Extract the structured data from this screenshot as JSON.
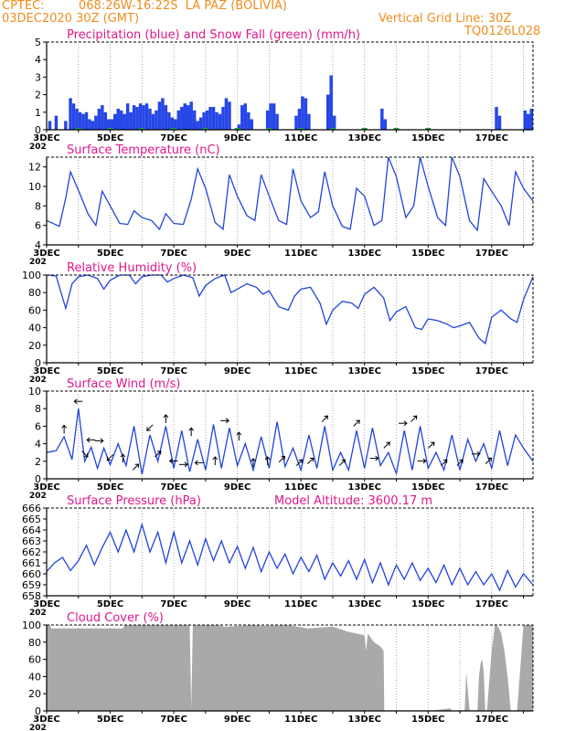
{
  "header": {
    "source": "CPTEC:",
    "location": "068:26W-16:22S  LA PAZ (BOLIVIA)",
    "run": "03DEC2020 30Z (GMT)",
    "grid_note": "Vertical Grid Line: 30Z",
    "code": "TQ0126L028"
  },
  "colors": {
    "header": "#f08c1e",
    "title": "#e0188c",
    "rain": "#2646e6",
    "snow": "#1aa64a",
    "line": "#2244dd",
    "cloud": "#a9a9a9",
    "wind_arrow": "#000000"
  },
  "x_ticks": [
    "3DEC",
    "5DEC",
    "7DEC",
    "9DEC",
    "11DEC",
    "13DEC",
    "15DEC",
    "17DEC"
  ],
  "year_stub": "202",
  "chart_data": [
    {
      "type": "bar",
      "title": "Precipitation (blue) and Snow Fall (green) (mm/h)",
      "ylim": [
        0,
        5
      ],
      "yticks": [
        "0",
        "1",
        "2",
        "3",
        "4",
        "5"
      ],
      "x_range_days": [
        0,
        15.3
      ],
      "series": [
        {
          "name": "Precipitation",
          "values": [
            [
              0.1,
              0.5
            ],
            [
              0.3,
              0.8
            ],
            [
              0.6,
              0.5
            ],
            [
              0.75,
              1.8
            ],
            [
              0.85,
              1.5
            ],
            [
              0.95,
              1.2
            ],
            [
              1.05,
              1.0
            ],
            [
              1.15,
              0.9
            ],
            [
              1.25,
              1.0
            ],
            [
              1.35,
              0.6
            ],
            [
              1.45,
              0.5
            ],
            [
              1.55,
              0.8
            ],
            [
              1.65,
              1.2
            ],
            [
              1.75,
              1.4
            ],
            [
              1.85,
              1.0
            ],
            [
              1.95,
              0.6
            ],
            [
              2.05,
              0.6
            ],
            [
              2.15,
              0.9
            ],
            [
              2.25,
              1.2
            ],
            [
              2.35,
              1.1
            ],
            [
              2.45,
              0.9
            ],
            [
              2.55,
              1.5
            ],
            [
              2.65,
              1.0
            ],
            [
              2.75,
              1.4
            ],
            [
              2.85,
              1.3
            ],
            [
              2.95,
              1.5
            ],
            [
              3.05,
              1.4
            ],
            [
              3.15,
              1.5
            ],
            [
              3.25,
              1.2
            ],
            [
              3.35,
              0.9
            ],
            [
              3.45,
              1.1
            ],
            [
              3.55,
              1.6
            ],
            [
              3.65,
              1.8
            ],
            [
              3.75,
              1.4
            ],
            [
              3.85,
              1.0
            ],
            [
              3.95,
              0.7
            ],
            [
              4.05,
              0.6
            ],
            [
              4.15,
              1.1
            ],
            [
              4.25,
              1.3
            ],
            [
              4.35,
              1.5
            ],
            [
              4.45,
              1.4
            ],
            [
              4.55,
              1.6
            ],
            [
              4.65,
              1.1
            ],
            [
              4.75,
              0.5
            ],
            [
              4.85,
              0.7
            ],
            [
              4.95,
              1.0
            ],
            [
              5.05,
              1.1
            ],
            [
              5.15,
              1.3
            ],
            [
              5.25,
              1.3
            ],
            [
              5.35,
              1.0
            ],
            [
              5.45,
              0.9
            ],
            [
              5.55,
              1.3
            ],
            [
              5.65,
              1.8
            ],
            [
              5.75,
              1.6
            ],
            [
              6.05,
              0.3
            ],
            [
              6.15,
              1.4
            ],
            [
              6.25,
              1.5
            ],
            [
              6.35,
              1.0
            ],
            [
              6.45,
              0.6
            ],
            [
              6.95,
              1.1
            ],
            [
              7.05,
              1.5
            ],
            [
              7.15,
              1.5
            ],
            [
              7.25,
              0.9
            ],
            [
              7.85,
              0.8
            ],
            [
              7.95,
              1.2
            ],
            [
              8.05,
              1.9
            ],
            [
              8.15,
              1.8
            ],
            [
              8.25,
              0.9
            ],
            [
              8.85,
              2.0
            ],
            [
              8.95,
              3.1
            ],
            [
              9.05,
              0.8
            ],
            [
              10.55,
              1.2
            ],
            [
              10.65,
              0.6
            ],
            [
              14.15,
              1.3
            ],
            [
              14.25,
              0.8
            ],
            [
              15.05,
              1.1
            ],
            [
              15.15,
              0.9
            ],
            [
              15.25,
              1.2
            ]
          ]
        },
        {
          "name": "Snow Fall",
          "values": [
            [
              1.0,
              0.05
            ],
            [
              2.0,
              0.05
            ],
            [
              3.0,
              0.05
            ],
            [
              4.0,
              0.05
            ],
            [
              5.0,
              0.05
            ],
            [
              6.0,
              0.05
            ],
            [
              7.0,
              0.05
            ],
            [
              8.0,
              0.05
            ],
            [
              9.0,
              0.05
            ],
            [
              10.0,
              0.05
            ],
            [
              11.0,
              0.05
            ],
            [
              12.0,
              0.05
            ]
          ]
        }
      ]
    },
    {
      "type": "line",
      "title": "Surface Temperature (nC)",
      "ylim": [
        4,
        13
      ],
      "yticks": [
        "4",
        "6",
        "8",
        "10",
        "12"
      ],
      "x": [
        0,
        0.4,
        0.6,
        0.75,
        1.0,
        1.3,
        1.55,
        1.75,
        2.0,
        2.3,
        2.55,
        2.75,
        3.0,
        3.3,
        3.55,
        3.75,
        4.0,
        4.3,
        4.55,
        4.75,
        5.0,
        5.3,
        5.55,
        5.75,
        6.0,
        6.3,
        6.55,
        6.75,
        7.0,
        7.3,
        7.55,
        7.75,
        8.0,
        8.3,
        8.55,
        8.75,
        9.0,
        9.3,
        9.55,
        9.75,
        10.0,
        10.3,
        10.55,
        10.75,
        11.0,
        11.3,
        11.55,
        11.75,
        12.0,
        12.3,
        12.55,
        12.75,
        13.0,
        13.3,
        13.55,
        13.75,
        14.0,
        14.3,
        14.55,
        14.75,
        15.0,
        15.3
      ],
      "y": [
        6.5,
        5.9,
        8.8,
        11.5,
        9.6,
        7.2,
        6.0,
        9.5,
        8.0,
        6.2,
        6.1,
        7.5,
        6.8,
        6.5,
        5.6,
        7.2,
        6.2,
        6.1,
        8.7,
        11.8,
        9.8,
        6.3,
        5.6,
        11.2,
        9.0,
        7.0,
        6.5,
        11.2,
        9.0,
        6.5,
        6.1,
        11.8,
        8.5,
        6.8,
        7.4,
        11.5,
        8.0,
        5.9,
        5.6,
        9.8,
        9.0,
        6.0,
        6.5,
        13.0,
        11.0,
        6.8,
        8.0,
        13.0,
        10.0,
        6.8,
        6.0,
        13.0,
        11.0,
        6.5,
        5.5,
        10.8,
        9.5,
        8.0,
        6.0,
        11.5,
        9.8,
        8.5
      ]
    },
    {
      "type": "line",
      "title": "Relative Humidity (%)",
      "ylim": [
        0,
        100
      ],
      "yticks": [
        "0",
        "20",
        "40",
        "60",
        "80",
        "100"
      ],
      "x": [
        0,
        0.3,
        0.6,
        0.8,
        1.0,
        1.3,
        1.6,
        1.8,
        2.0,
        2.3,
        2.6,
        2.8,
        3.0,
        3.3,
        3.6,
        3.8,
        4.0,
        4.3,
        4.6,
        4.8,
        5.0,
        5.3,
        5.6,
        5.8,
        6.0,
        6.3,
        6.6,
        6.8,
        7.0,
        7.3,
        7.6,
        7.8,
        8.0,
        8.3,
        8.6,
        8.8,
        9.0,
        9.3,
        9.6,
        9.8,
        10.0,
        10.3,
        10.6,
        10.8,
        11.0,
        11.3,
        11.6,
        11.8,
        12.0,
        12.3,
        12.6,
        12.8,
        13.0,
        13.3,
        13.6,
        13.8,
        14.0,
        14.3,
        14.6,
        14.8,
        15.0,
        15.3
      ],
      "y": [
        100,
        99,
        62,
        90,
        98,
        100,
        96,
        84,
        94,
        100,
        100,
        90,
        98,
        100,
        100,
        92,
        96,
        100,
        97,
        76,
        88,
        96,
        100,
        80,
        84,
        90,
        86,
        78,
        82,
        64,
        60,
        76,
        84,
        86,
        68,
        44,
        60,
        70,
        68,
        62,
        78,
        86,
        74,
        48,
        58,
        64,
        40,
        38,
        50,
        48,
        44,
        40,
        42,
        46,
        28,
        22,
        52,
        60,
        50,
        46,
        72,
        98
      ]
    },
    {
      "type": "line",
      "title": "Surface Wind (m/s)",
      "ylim": [
        0,
        10
      ],
      "yticks": [
        "0",
        "2",
        "4",
        "6",
        "8",
        "10"
      ],
      "x": [
        0,
        0.3,
        0.55,
        0.8,
        1.0,
        1.2,
        1.4,
        1.6,
        1.8,
        2.0,
        2.25,
        2.5,
        2.75,
        3.0,
        3.25,
        3.5,
        3.75,
        4.0,
        4.25,
        4.5,
        4.75,
        5.0,
        5.25,
        5.5,
        5.75,
        6.0,
        6.25,
        6.5,
        6.75,
        7.0,
        7.25,
        7.5,
        7.75,
        8.0,
        8.25,
        8.5,
        8.75,
        9.0,
        9.25,
        9.5,
        9.75,
        10.0,
        10.25,
        10.5,
        10.75,
        11.0,
        11.25,
        11.5,
        11.75,
        12.0,
        12.25,
        12.5,
        12.75,
        13.0,
        13.25,
        13.5,
        13.75,
        14.0,
        14.25,
        14.5,
        14.75,
        15.0,
        15.3
      ],
      "y": [
        3.0,
        3.2,
        4.8,
        2.2,
        8.0,
        2.0,
        3.6,
        1.2,
        3.5,
        1.6,
        4.0,
        1.5,
        6.0,
        0.5,
        5.0,
        2.0,
        6.0,
        1.2,
        5.5,
        0.8,
        4.5,
        1.0,
        6.2,
        1.2,
        5.8,
        1.5,
        4.0,
        1.0,
        4.8,
        1.2,
        6.5,
        1.4,
        3.5,
        1.0,
        5.0,
        1.2,
        6.0,
        1.0,
        3.0,
        1.0,
        5.5,
        1.2,
        5.8,
        1.5,
        3.0,
        0.6,
        5.5,
        1.0,
        6.0,
        1.2,
        3.0,
        1.0,
        5.0,
        1.0,
        4.5,
        2.0,
        4.0,
        1.2,
        5.5,
        1.5,
        5.0,
        3.5,
        2.0
      ],
      "arrows": [
        [
          0.55,
          0,
          1
        ],
        [
          1.0,
          -1,
          0
        ],
        [
          1.2,
          1,
          -1
        ],
        [
          1.4,
          -1,
          0
        ],
        [
          1.65,
          1,
          0
        ],
        [
          2.0,
          -1,
          -1
        ],
        [
          2.4,
          0,
          1
        ],
        [
          2.8,
          1,
          1
        ],
        [
          3.25,
          -1,
          -1
        ],
        [
          3.5,
          1,
          1
        ],
        [
          3.75,
          0,
          1
        ],
        [
          4.0,
          -1,
          0
        ],
        [
          4.3,
          1,
          0
        ],
        [
          4.55,
          0,
          1
        ],
        [
          4.8,
          -1,
          0
        ],
        [
          5.3,
          0,
          1
        ],
        [
          5.6,
          1,
          0
        ],
        [
          6.05,
          0,
          1
        ],
        [
          6.5,
          0,
          1
        ],
        [
          6.95,
          0,
          1
        ],
        [
          7.4,
          1,
          1
        ],
        [
          7.95,
          1,
          1
        ],
        [
          8.3,
          1,
          1
        ],
        [
          8.75,
          1,
          1
        ],
        [
          9.3,
          1,
          1
        ],
        [
          9.75,
          1,
          1
        ],
        [
          10.3,
          1,
          0
        ],
        [
          10.7,
          1,
          1
        ],
        [
          11.2,
          1,
          0
        ],
        [
          11.55,
          1,
          1
        ],
        [
          11.8,
          1,
          0
        ],
        [
          12.1,
          1,
          1
        ],
        [
          12.5,
          1,
          1
        ],
        [
          13.0,
          1,
          1
        ],
        [
          13.5,
          1,
          0
        ],
        [
          13.9,
          1,
          1
        ]
      ]
    },
    {
      "type": "line",
      "title": "Surface Pressure (hPa)",
      "annotation": "Model Altitude: 3600.17 m",
      "ylim": [
        658,
        666
      ],
      "yticks": [
        "658",
        "659",
        "660",
        "661",
        "662",
        "663",
        "664",
        "665",
        "666"
      ],
      "x": [
        0,
        0.25,
        0.5,
        0.75,
        1.0,
        1.25,
        1.5,
        1.75,
        2.0,
        2.25,
        2.5,
        2.75,
        3.0,
        3.25,
        3.5,
        3.75,
        4.0,
        4.25,
        4.5,
        4.75,
        5.0,
        5.25,
        5.5,
        5.75,
        6.0,
        6.25,
        6.5,
        6.75,
        7.0,
        7.25,
        7.5,
        7.75,
        8.0,
        8.25,
        8.5,
        8.75,
        9.0,
        9.25,
        9.5,
        9.75,
        10.0,
        10.25,
        10.5,
        10.75,
        11.0,
        11.25,
        11.5,
        11.75,
        12.0,
        12.25,
        12.5,
        12.75,
        13.0,
        13.25,
        13.5,
        13.75,
        14.0,
        14.25,
        14.5,
        14.75,
        15.0,
        15.3
      ],
      "y": [
        660.2,
        661.0,
        661.5,
        660.3,
        661.2,
        662.6,
        660.8,
        662.4,
        663.8,
        662.0,
        664.0,
        662.0,
        664.5,
        662.0,
        663.8,
        661.0,
        663.8,
        661.0,
        663.0,
        660.8,
        663.2,
        661.2,
        663.0,
        661.0,
        662.5,
        660.5,
        662.4,
        660.2,
        662.0,
        660.5,
        661.8,
        660.0,
        661.5,
        660.2,
        661.7,
        659.5,
        661.0,
        659.8,
        661.2,
        659.5,
        661.3,
        659.2,
        661.0,
        659.0,
        660.8,
        659.5,
        661.0,
        659.4,
        660.5,
        659.2,
        660.8,
        659.0,
        660.5,
        659.0,
        660.2,
        659.0,
        660.0,
        658.5,
        660.3,
        658.8,
        660.0,
        659.0
      ]
    },
    {
      "type": "area",
      "title": "Cloud Cover (%)",
      "ylim": [
        0,
        100
      ],
      "yticks": [
        "0",
        "20",
        "40",
        "60",
        "80",
        "100"
      ],
      "x": [
        0,
        0.1,
        0.15,
        2.4,
        2.45,
        4.5,
        4.55,
        4.6,
        5.4,
        5.6,
        6.5,
        6.8,
        7.6,
        8.2,
        9.0,
        9.5,
        10.0,
        10.05,
        10.1,
        10.2,
        10.3,
        10.5,
        10.6,
        10.62,
        11.0,
        11.5,
        12.0,
        12.5,
        12.7,
        12.75,
        13.0,
        13.1,
        13.15,
        13.2,
        13.3,
        13.35,
        13.4,
        13.5,
        13.55,
        13.6,
        13.65,
        13.7,
        13.75,
        13.8,
        13.85,
        14.0,
        14.1,
        14.2,
        14.3,
        14.4,
        14.5,
        14.6,
        14.7,
        14.8,
        15.0,
        15.1,
        15.15,
        15.3
      ],
      "y": [
        100,
        100,
        96,
        96,
        100,
        100,
        2,
        100,
        100,
        98,
        100,
        99,
        100,
        96,
        98,
        92,
        88,
        70,
        90,
        85,
        80,
        75,
        70,
        0,
        0,
        0,
        0,
        2,
        3,
        0,
        0,
        0,
        0,
        45,
        2,
        0,
        0,
        0,
        0,
        40,
        55,
        60,
        45,
        0,
        0,
        70,
        100,
        98,
        90,
        70,
        40,
        0,
        0,
        0,
        100,
        100,
        100,
        100
      ]
    }
  ]
}
